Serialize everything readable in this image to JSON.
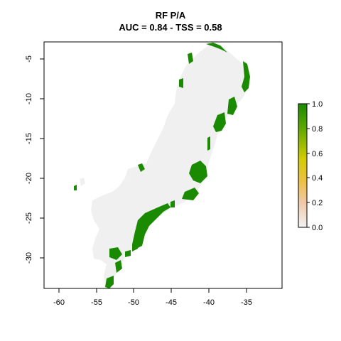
{
  "title_line1": "RF P/A",
  "title_line2": "AUC = 0.84 - TSS = 0.58",
  "map": {
    "x_ticks": [
      "-60",
      "-55",
      "-50",
      "-45",
      "-40",
      "-35"
    ],
    "y_ticks": [
      "-5",
      "-10",
      "-15",
      "-20",
      "-25",
      "-30"
    ],
    "background_color": "#f0f0f0",
    "presence_color": "#1a8a00",
    "xlim": [
      -62,
      -30.5
    ],
    "ylim": [
      -34,
      -2
    ]
  },
  "legend": {
    "ticks": [
      "1.0",
      "0.8",
      "0.6",
      "0.4",
      "0.2",
      "0.0"
    ],
    "colors": [
      "#1a8a00",
      "#5fa800",
      "#d4cc00",
      "#ecc040",
      "#f0c8a8",
      "#f2f2f2"
    ],
    "range": [
      0,
      1
    ]
  }
}
